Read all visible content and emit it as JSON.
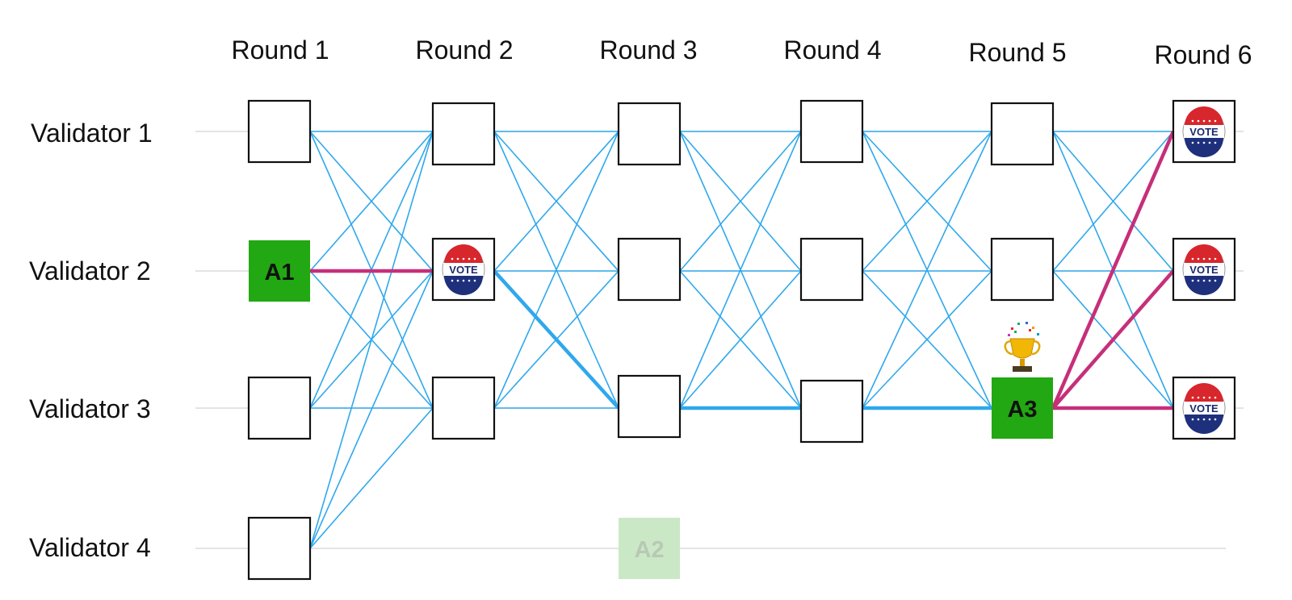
{
  "round_labels": [
    "Round 1",
    "Round 2",
    "Round 3",
    "Round 4",
    "Round 5",
    "Round 6"
  ],
  "validator_labels": [
    "Validator 1",
    "Validator 2",
    "Validator 3",
    "Validator 4"
  ],
  "anchors": [
    {
      "label": "A1",
      "round": 1,
      "validator": 2,
      "state": "committed"
    },
    {
      "label": "A2",
      "round": 3,
      "validator": 4,
      "state": "missing"
    },
    {
      "label": "A3",
      "round": 5,
      "validator": 3,
      "state": "committed",
      "badge": "trophy"
    }
  ],
  "vote_badge_text": "VOTE",
  "votes": [
    {
      "round": 2,
      "validator": 2
    },
    {
      "round": 6,
      "validator": 1
    },
    {
      "round": 6,
      "validator": 2
    },
    {
      "round": 6,
      "validator": 3
    }
  ],
  "colors": {
    "edge": "#2fa8ec",
    "vote_edge": "#c62f7a",
    "anchor": "#22a812",
    "anchor_missing": "#cbe8c6",
    "guide": "#d3d3d3"
  }
}
